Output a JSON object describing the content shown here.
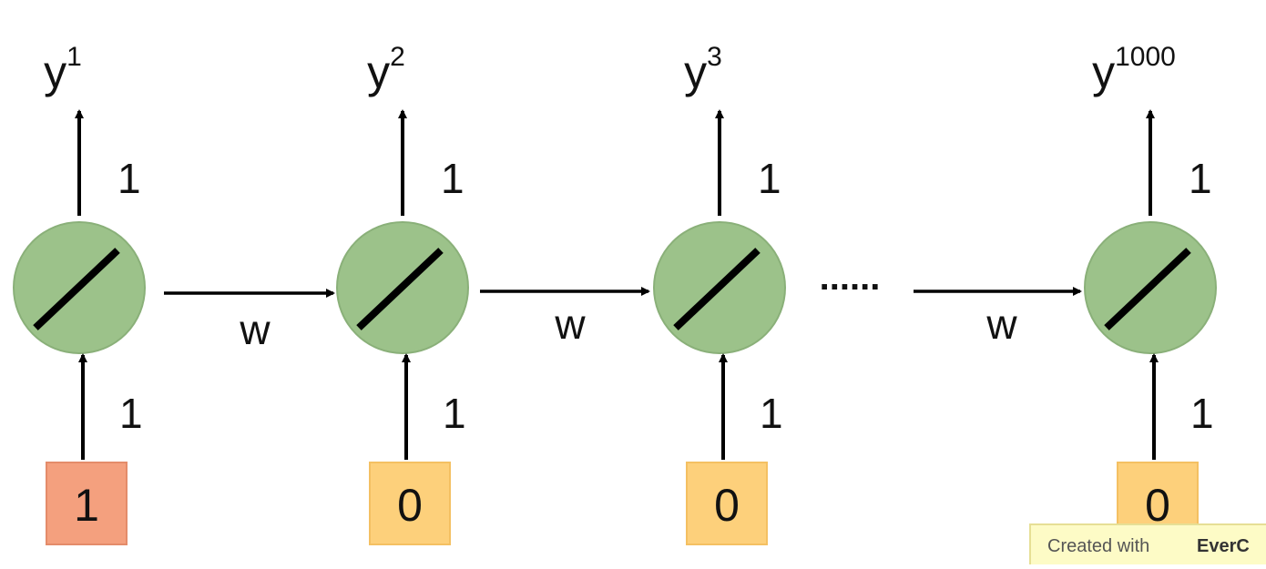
{
  "units": [
    {
      "output": {
        "base": "y",
        "sup": "1"
      },
      "output_weight": "1",
      "input_weight": "1",
      "input": "1"
    },
    {
      "output": {
        "base": "y",
        "sup": "2"
      },
      "output_weight": "1",
      "input_weight": "1",
      "input": "0"
    },
    {
      "output": {
        "base": "y",
        "sup": "3"
      },
      "output_weight": "1",
      "input_weight": "1",
      "input": "0"
    },
    {
      "output": {
        "base": "y",
        "sup": "1000"
      },
      "output_weight": "1",
      "input_weight": "1",
      "input": "0"
    }
  ],
  "recurrent_weights": [
    "w",
    "w",
    "w"
  ],
  "ellipsis": "......",
  "watermark": {
    "prefix": "Created with",
    "brand": "EverC"
  }
}
